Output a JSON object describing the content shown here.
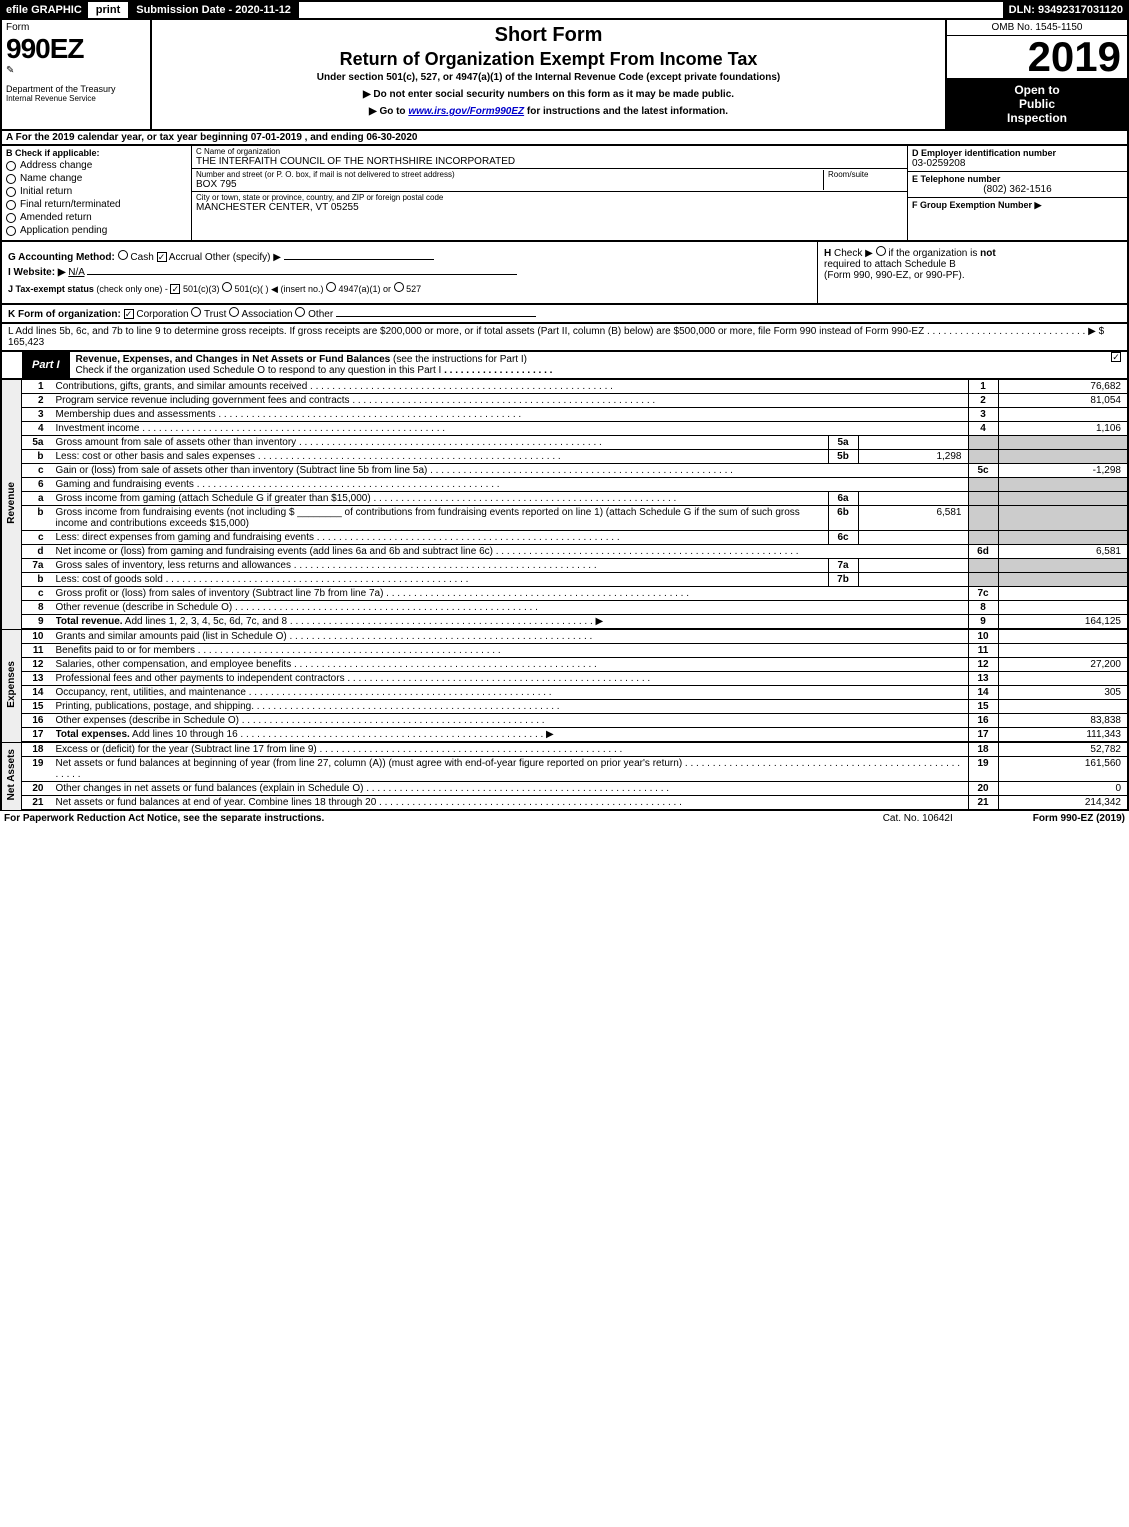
{
  "colors": {
    "black": "#000000",
    "white": "#ffffff",
    "shade": "#cccccc",
    "link": "#0000cc",
    "light_shade": "#eeeeee"
  },
  "top": {
    "efile": "efile GRAPHIC",
    "print": "print",
    "submission": "Submission Date - 2020-11-12",
    "dln": "DLN: 93492317031120"
  },
  "header": {
    "form_label": "Form",
    "form_number": "990EZ",
    "dept": "Department of the Treasury",
    "irs": "Internal Revenue Service",
    "title1": "Short Form",
    "title2": "Return of Organization Exempt From Income Tax",
    "subtitle": "Under section 501(c), 527, or 4947(a)(1) of the Internal Revenue Code (except private foundations)",
    "warn": "▶ Do not enter social security numbers on this form as it may be made public.",
    "goto": "▶ Go to www.irs.gov/Form990EZ for instructions and the latest information.",
    "omb": "OMB No. 1545-1150",
    "year": "2019",
    "open1": "Open to",
    "open2": "Public",
    "open3": "Inspection"
  },
  "period": {
    "text_a": "A For the 2019 calendar year, or tax year beginning ",
    "begin": "07-01-2019",
    "mid": " , and ending ",
    "end": "06-30-2020"
  },
  "boxB": {
    "title": "B Check if applicable:",
    "items": [
      "Address change",
      "Name change",
      "Initial return",
      "Final return/terminated",
      "Amended return",
      "Application pending"
    ]
  },
  "boxC": {
    "name_lbl": "C Name of organization",
    "name": "THE INTERFAITH COUNCIL OF THE NORTHSHIRE INCORPORATED",
    "street_lbl": "Number and street (or P. O. box, if mail is not delivered to street address)",
    "room_lbl": "Room/suite",
    "street": "BOX 795",
    "city_lbl": "City or town, state or province, country, and ZIP or foreign postal code",
    "city": "MANCHESTER CENTER, VT  05255"
  },
  "boxD": {
    "lbl": "D Employer identification number",
    "val": "03-0259208"
  },
  "boxE": {
    "lbl": "E Telephone number",
    "val": "(802) 362-1516"
  },
  "boxF": {
    "lbl": "F Group Exemption Number    ▶",
    "val": ""
  },
  "lineG": {
    "lbl": "G Accounting Method:",
    "cash": "Cash",
    "accrual": "Accrual",
    "other": "Other (specify) ▶"
  },
  "lineH": {
    "lbl": "H",
    "text1": "Check ▶",
    "text2": "if the organization is",
    "not": "not",
    "text3": "required to attach Schedule B",
    "text4": "(Form 990, 990-EZ, or 990-PF)."
  },
  "lineI": {
    "lbl": "I Website: ▶",
    "val": "N/A"
  },
  "lineJ": {
    "lbl": "J Tax-exempt status",
    "note": "(check only one) -",
    "a": "501(c)(3)",
    "b": "501(c)( )",
    "b2": "◀ (insert no.)",
    "c": "4947(a)(1) or",
    "d": "527"
  },
  "lineK": {
    "lbl": "K Form of organization:",
    "corp": "Corporation",
    "trust": "Trust",
    "assoc": "Association",
    "other": "Other"
  },
  "lineL": {
    "text": "L Add lines 5b, 6c, and 7b to line 9 to determine gross receipts. If gross receipts are $200,000 or more, or if total assets (Part II, column (B) below) are $500,000 or more, file Form 990 instead of Form 990-EZ",
    "arrow": "▶",
    "val": "$ 165,423"
  },
  "partI": {
    "badge": "Part I",
    "title": "Revenue, Expenses, and Changes in Net Assets or Fund Balances",
    "title_note": "(see the instructions for Part I)",
    "check_line": "Check if the organization used Schedule O to respond to any question in this Part I"
  },
  "sections": {
    "revenue": "Revenue",
    "expenses": "Expenses",
    "netassets": "Net Assets"
  },
  "rows": [
    {
      "n": "1",
      "desc": "Contributions, gifts, grants, and similar amounts received",
      "rn": "1",
      "rv": "76,682"
    },
    {
      "n": "2",
      "desc": "Program service revenue including government fees and contracts",
      "rn": "2",
      "rv": "81,054"
    },
    {
      "n": "3",
      "desc": "Membership dues and assessments",
      "rn": "3",
      "rv": ""
    },
    {
      "n": "4",
      "desc": "Investment income",
      "rn": "4",
      "rv": "1,106"
    },
    {
      "n": "5a",
      "desc": "Gross amount from sale of assets other than inventory",
      "mn": "5a",
      "mv": "",
      "shadeR": true
    },
    {
      "n": "b",
      "desc": "Less: cost or other basis and sales expenses",
      "mn": "5b",
      "mv": "1,298",
      "shadeR": true
    },
    {
      "n": "c",
      "desc": "Gain or (loss) from sale of assets other than inventory (Subtract line 5b from line 5a)",
      "rn": "5c",
      "rv": "-1,298"
    },
    {
      "n": "6",
      "desc": "Gaming and fundraising events",
      "shadeR": true,
      "noMid": true
    },
    {
      "n": "a",
      "desc": "Gross income from gaming (attach Schedule G if greater than $15,000)",
      "mn": "6a",
      "mv": "",
      "shadeR": true
    },
    {
      "n": "b",
      "desc_html": "Gross income from fundraising events (not including $ ________ of contributions from fundraising events reported on line 1) (attach Schedule G if the sum of such gross income and contributions exceeds $15,000)",
      "mn": "6b",
      "mv": "6,581",
      "shadeR": true
    },
    {
      "n": "c",
      "desc": "Less: direct expenses from gaming and fundraising events",
      "mn": "6c",
      "mv": "",
      "shadeR": true
    },
    {
      "n": "d",
      "desc": "Net income or (loss) from gaming and fundraising events (add lines 6a and 6b and subtract line 6c)",
      "rn": "6d",
      "rv": "6,581"
    },
    {
      "n": "7a",
      "desc": "Gross sales of inventory, less returns and allowances",
      "mn": "7a",
      "mv": "",
      "shadeR": true
    },
    {
      "n": "b",
      "desc": "Less: cost of goods sold",
      "mn": "7b",
      "mv": "",
      "shadeR": true
    },
    {
      "n": "c",
      "desc": "Gross profit or (loss) from sales of inventory (Subtract line 7b from line 7a)",
      "rn": "7c",
      "rv": ""
    },
    {
      "n": "8",
      "desc": "Other revenue (describe in Schedule O)",
      "rn": "8",
      "rv": ""
    },
    {
      "n": "9",
      "desc_bold": "Total revenue.",
      "desc_tail": " Add lines 1, 2, 3, 4, 5c, 6d, 7c, and 8",
      "arrow": true,
      "rn": "9",
      "rv": "164,125"
    }
  ],
  "exp_rows": [
    {
      "n": "10",
      "desc": "Grants and similar amounts paid (list in Schedule O)",
      "rn": "10",
      "rv": ""
    },
    {
      "n": "11",
      "desc": "Benefits paid to or for members",
      "rn": "11",
      "rv": ""
    },
    {
      "n": "12",
      "desc": "Salaries, other compensation, and employee benefits",
      "rn": "12",
      "rv": "27,200"
    },
    {
      "n": "13",
      "desc": "Professional fees and other payments to independent contractors",
      "rn": "13",
      "rv": ""
    },
    {
      "n": "14",
      "desc": "Occupancy, rent, utilities, and maintenance",
      "rn": "14",
      "rv": "305"
    },
    {
      "n": "15",
      "desc": "Printing, publications, postage, and shipping.",
      "rn": "15",
      "rv": ""
    },
    {
      "n": "16",
      "desc": "Other expenses (describe in Schedule O)",
      "rn": "16",
      "rv": "83,838"
    },
    {
      "n": "17",
      "desc_bold": "Total expenses.",
      "desc_tail": " Add lines 10 through 16",
      "arrow": true,
      "rn": "17",
      "rv": "111,343"
    }
  ],
  "na_rows": [
    {
      "n": "18",
      "desc": "Excess or (deficit) for the year (Subtract line 17 from line 9)",
      "rn": "18",
      "rv": "52,782"
    },
    {
      "n": "19",
      "desc": "Net assets or fund balances at beginning of year (from line 27, column (A)) (must agree with end-of-year figure reported on prior year's return)",
      "rn": "19",
      "rv": "161,560",
      "tall": true
    },
    {
      "n": "20",
      "desc": "Other changes in net assets or fund balances (explain in Schedule O)",
      "rn": "20",
      "rv": "0"
    },
    {
      "n": "21",
      "desc": "Net assets or fund balances at end of year. Combine lines 18 through 20",
      "rn": "21",
      "rv": "214,342"
    }
  ],
  "footer": {
    "left": "For Paperwork Reduction Act Notice, see the separate instructions.",
    "mid": "Cat. No. 10642I",
    "right_a": "Form ",
    "right_b": "990-EZ",
    "right_c": " (2019)"
  }
}
